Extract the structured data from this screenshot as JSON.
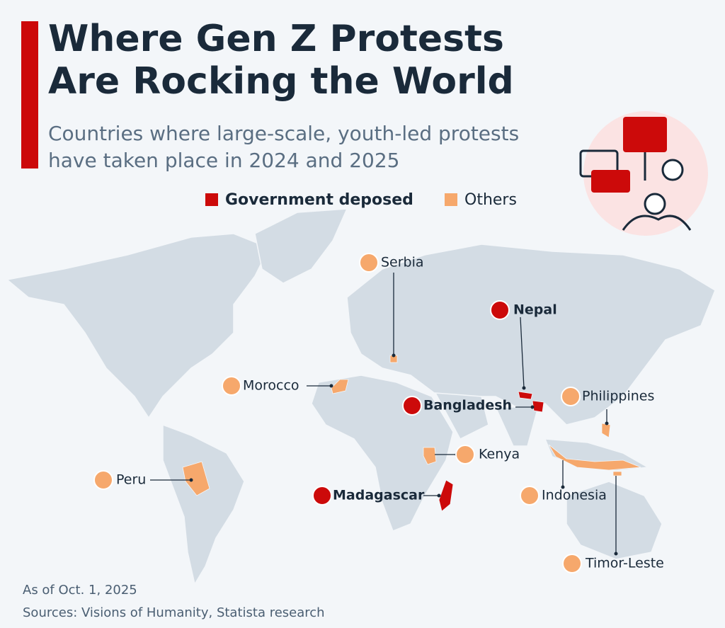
{
  "header": {
    "title_lines": [
      "Where Gen Z Protests",
      "Are Rocking the World"
    ],
    "subtitle_lines": [
      "Countries where large-scale, youth-led protests",
      "have taken place in 2024 and 2025"
    ]
  },
  "legend": {
    "items": [
      {
        "name": "Government deposed",
        "color": "#cc0a0a",
        "countries": [
          "Nepal",
          "Bangladesh",
          "Madagascar"
        ]
      },
      {
        "name": "Others",
        "color": "#f6a86c",
        "countries": [
          "Serbia",
          "Morocco",
          "Philippines",
          "Kenya",
          "Peru",
          "Indonesia",
          "Timor-Leste"
        ]
      }
    ]
  },
  "footer": {
    "note": "As of Oct. 1, 2025",
    "sources": "Sources: Visions of Humanity, Statista research"
  }
}
